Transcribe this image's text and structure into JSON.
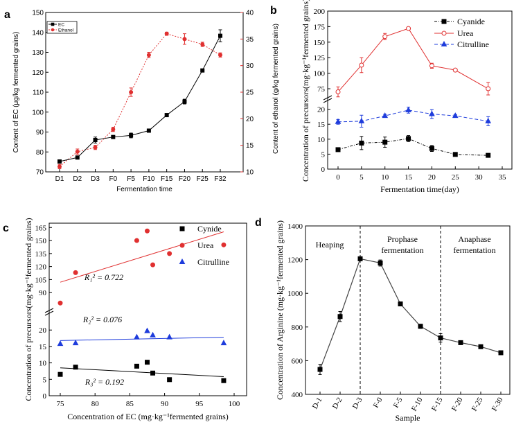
{
  "chart_data": [
    {
      "panel": "a",
      "type": "line",
      "categories": [
        "D1",
        "D2",
        "D3",
        "F0",
        "F5",
        "F10",
        "F15",
        "F20",
        "F25",
        "F32"
      ],
      "xlabel": "Fermentation time",
      "ylabel": "Content of EC (μg/kg fermented grains)",
      "ylabel_right": "Content of ethanol (g/kg fermented grains)",
      "ylim": [
        70,
        150
      ],
      "yticks": [
        70,
        80,
        90,
        100,
        110,
        120,
        130,
        140,
        150
      ],
      "ylim_right": [
        10,
        40
      ],
      "yticks_right": [
        10,
        15,
        20,
        25,
        30,
        35,
        40
      ],
      "colors": {
        "EC": "#000000",
        "Ethanol": "#e03030"
      },
      "series": [
        {
          "name": "EC",
          "axis": "left",
          "values": [
            75.2,
            77.2,
            86.0,
            87.5,
            88.3,
            90.7,
            98.5,
            105.3,
            120.9,
            138.3
          ],
          "errors": [
            0.8,
            0.6,
            1.5,
            0.5,
            1.2,
            0.6,
            0.5,
            1.2,
            0.5,
            3.0
          ]
        },
        {
          "name": "Ethanol",
          "axis": "right",
          "values": [
            11.0,
            13.8,
            14.6,
            18.0,
            25.0,
            32.0,
            36.0,
            35.0,
            34.0,
            32.0
          ],
          "errors": [
            0.4,
            0.5,
            0.4,
            0.4,
            0.8,
            0.5,
            0.3,
            1.0,
            0.4,
            0.4
          ]
        }
      ]
    },
    {
      "panel": "b",
      "type": "line",
      "x": [
        0,
        5,
        10,
        15,
        20,
        25,
        32
      ],
      "xlabel": "Fermentation time(day)",
      "ylabel": "Concentration of precursors(mg·kg⁻¹fermented grains)",
      "xlim": [
        0,
        35
      ],
      "xticks": [
        0,
        5,
        10,
        15,
        20,
        25,
        30,
        35
      ],
      "yticks_lower": [
        0,
        5,
        10,
        15,
        20
      ],
      "yticks_upper": [
        75,
        100,
        125,
        150,
        175,
        200
      ],
      "colors": {
        "Cyanide": "#000000",
        "Urea": "#e03030",
        "Citrulline": "#1e3cdc"
      },
      "series": [
        {
          "name": "Cyanide",
          "values": [
            6.5,
            8.7,
            9.0,
            10.2,
            6.9,
            4.9,
            4.6
          ],
          "errors": [
            0.4,
            2.2,
            1.7,
            1.0,
            1.0,
            0.3,
            0.3
          ]
        },
        {
          "name": "Urea",
          "values": [
            70,
            113,
            159,
            172,
            112,
            105,
            75
          ],
          "errors": [
            8,
            12,
            5,
            1,
            4,
            1,
            10
          ]
        },
        {
          "name": "Citrulline",
          "values": [
            15.8,
            16.0,
            17.8,
            19.7,
            18.4,
            17.8,
            16.0
          ],
          "errors": [
            0.8,
            2.0,
            0.5,
            1.0,
            1.5,
            0.4,
            1.5
          ]
        }
      ]
    },
    {
      "panel": "c",
      "type": "scatter",
      "xlabel": "Concentration of EC (mg·kg⁻¹fermented grains)",
      "ylabel": "Concentration of precursors(mg·kg⁻¹fermented grains)",
      "xlim": [
        75,
        100
      ],
      "xticks": [
        75,
        80,
        85,
        90,
        95,
        100
      ],
      "yticks_lower": [
        0,
        5,
        10,
        15,
        20
      ],
      "yticks_upper": [
        90,
        105,
        120,
        135,
        150,
        165
      ],
      "colors": {
        "Cynide": "#000000",
        "Urea": "#e03030",
        "Citrulline": "#1e3cdc"
      },
      "annotations": [
        {
          "series": "Urea",
          "text": "R₁² = 0.722"
        },
        {
          "series": "Citrulline",
          "text": "R₂² = 0.076"
        },
        {
          "series": "Cynide",
          "text": "R₃² = 0.192"
        }
      ],
      "series": [
        {
          "name": "Cynide",
          "x": [
            75.0,
            77.2,
            86.0,
            87.5,
            88.3,
            90.7,
            98.5
          ],
          "y": [
            6.5,
            8.7,
            9.0,
            10.2,
            6.9,
            4.9,
            4.6
          ],
          "fit": [
            [
              75,
              8.5
            ],
            [
              98.5,
              5.8
            ]
          ]
        },
        {
          "name": "Urea",
          "x": [
            75.0,
            77.2,
            86.0,
            87.5,
            88.3,
            90.7,
            98.5
          ],
          "y": [
            78,
            113,
            150,
            161,
            122,
            135,
            145
          ],
          "fit": [
            [
              75,
              102
            ],
            [
              98.5,
              160
            ]
          ]
        },
        {
          "name": "Citrulline",
          "x": [
            75.0,
            77.2,
            86.0,
            87.5,
            88.3,
            90.7,
            98.5
          ],
          "y": [
            15.8,
            16.0,
            17.8,
            19.7,
            18.4,
            17.8,
            16.0
          ],
          "fit": [
            [
              75,
              16.8
            ],
            [
              98.5,
              17.8
            ]
          ]
        }
      ]
    },
    {
      "panel": "d",
      "type": "line",
      "categories": [
        "D-1",
        "D-2",
        "D-3",
        "F-0",
        "F-5",
        "F-10",
        "F-15",
        "F-20",
        "F-25",
        "F-30"
      ],
      "xlabel": "Sample",
      "ylabel": "Concentration of Arginine (mg·kg⁻¹fermented grains)",
      "ylim": [
        400,
        1400
      ],
      "yticks": [
        400,
        600,
        800,
        1000,
        1200,
        1400
      ],
      "regions": [
        "Heaping",
        "Prophase fermentation",
        "Anaphase fermentation"
      ],
      "colors": {
        "line": "#444444"
      },
      "series": [
        {
          "name": "",
          "values": [
            548,
            862,
            1205,
            1180,
            937,
            804,
            735,
            707,
            683,
            647
          ],
          "errors": [
            30,
            30,
            10,
            18,
            8,
            12,
            25,
            8,
            6,
            8
          ]
        }
      ]
    }
  ]
}
